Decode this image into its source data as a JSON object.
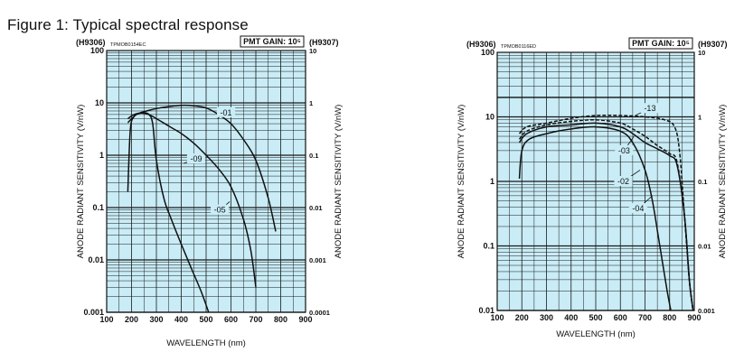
{
  "figure_title": "Figure 1: Typical spectral response",
  "chart_data": [
    {
      "type": "line",
      "left_header": "(H9306)",
      "right_header": "(H9307)",
      "code": "TPMOB0154EC",
      "gain_label": "PMT GAIN: 10⁵",
      "xlabel": "WAVELENGTH (nm)",
      "ylabel_left": "ANODE RADIANT SENSITIVITY (V/nW)",
      "ylabel_right": "ANODE RADIANT SENSITIVITY (V/nW)",
      "xlim": [
        100,
        900
      ],
      "ylim_left": [
        0.001,
        100
      ],
      "ylim_right": [
        0.0001,
        10
      ],
      "scale_y": "log",
      "grid": true,
      "x_ticks": [
        "100",
        "200",
        "300",
        "400",
        "500",
        "600",
        "700",
        "800",
        "900"
      ],
      "y_ticks_left": [
        "100",
        "10",
        "1",
        "0.1",
        "0.01",
        "0.001"
      ],
      "y_ticks_right": [
        "10",
        "1",
        "0.1",
        "0.01",
        "0.001",
        "0.0001"
      ],
      "series": [
        {
          "name": "-01",
          "label_at": [
            580,
            6.5
          ],
          "leader_to": [
            545,
            5.0
          ],
          "points": [
            [
              185,
              4.2
            ],
            [
              220,
              6.0
            ],
            [
              260,
              7.0
            ],
            [
              300,
              7.8
            ],
            [
              350,
              8.5
            ],
            [
              400,
              9.0
            ],
            [
              450,
              8.8
            ],
            [
              500,
              8.0
            ],
            [
              550,
              6.0
            ],
            [
              600,
              4.0
            ],
            [
              650,
              2.0
            ],
            [
              700,
              0.8
            ],
            [
              750,
              0.15
            ],
            [
              780,
              0.035
            ]
          ]
        },
        {
          "name": "-09",
          "label_at": [
            460,
            0.85
          ],
          "leader_to": [
            410,
            0.7
          ],
          "points": [
            [
              185,
              0.2
            ],
            [
              195,
              3.0
            ],
            [
              210,
              5.5
            ],
            [
              230,
              6.3
            ],
            [
              250,
              6.5
            ],
            [
              270,
              6.0
            ],
            [
              285,
              4.0
            ],
            [
              300,
              0.8
            ],
            [
              330,
              0.15
            ],
            [
              360,
              0.06
            ],
            [
              400,
              0.02
            ],
            [
              440,
              0.007
            ],
            [
              480,
              0.0025
            ],
            [
              510,
              0.001
            ]
          ]
        },
        {
          "name": "-05",
          "label_at": [
            555,
            0.09
          ],
          "leader_to": [
            595,
            0.13
          ],
          "points": [
            [
              185,
              5.0
            ],
            [
              210,
              6.0
            ],
            [
              240,
              6.4
            ],
            [
              270,
              6.0
            ],
            [
              300,
              5.0
            ],
            [
              350,
              3.6
            ],
            [
              400,
              2.6
            ],
            [
              450,
              1.7
            ],
            [
              500,
              1.0
            ],
            [
              550,
              0.55
            ],
            [
              600,
              0.25
            ],
            [
              650,
              0.06
            ],
            [
              680,
              0.015
            ],
            [
              700,
              0.003
            ]
          ]
        }
      ]
    },
    {
      "type": "line",
      "left_header": "(H9306)",
      "right_header": "(H9307)",
      "code": "TPMOB0116ED",
      "gain_label": "PMT GAIN: 10⁵",
      "xlabel": "WAVELENGTH (nm)",
      "ylabel_left": "ANODE RADIANT SENSITIVITY (V/nW)",
      "ylabel_right": "ANODE RADIANT SENSITIVITY (V/nW)",
      "xlim": [
        100,
        900
      ],
      "ylim_left": [
        0.01,
        100
      ],
      "ylim_right": [
        0.001,
        10
      ],
      "scale_y": "log",
      "grid": true,
      "x_ticks": [
        "100",
        "200",
        "300",
        "400",
        "500",
        "600",
        "700",
        "800",
        "900"
      ],
      "y_ticks_left": [
        "100",
        "10",
        "1",
        "0.1",
        "0.01"
      ],
      "y_ticks_right": [
        "10",
        "1",
        "0.1",
        "0.01",
        "0.001"
      ],
      "series": [
        {
          "name": "-13",
          "dash": true,
          "label_at": [
            720,
            13.5
          ],
          "leader_to": [
            660,
            10.5
          ],
          "points": [
            [
              190,
              5.5
            ],
            [
              220,
              7.0
            ],
            [
              300,
              8.0
            ],
            [
              400,
              9.5
            ],
            [
              500,
              10.5
            ],
            [
              600,
              10.5
            ],
            [
              700,
              10.0
            ],
            [
              780,
              9.0
            ],
            [
              820,
              7.0
            ],
            [
              840,
              3.0
            ],
            [
              860,
              0.3
            ],
            [
              880,
              0.03
            ],
            [
              895,
              0.01
            ]
          ]
        },
        {
          "name": "-03",
          "dash": true,
          "label_at": [
            615,
            3.0
          ],
          "leader_to": [
            655,
            5.0
          ],
          "points": [
            [
              190,
              4.5
            ],
            [
              220,
              6.0
            ],
            [
              300,
              7.5
            ],
            [
              400,
              8.5
            ],
            [
              500,
              9.0
            ],
            [
              600,
              8.0
            ],
            [
              650,
              6.5
            ],
            [
              700,
              5.0
            ],
            [
              750,
              3.6
            ],
            [
              800,
              2.7
            ],
            [
              830,
              2.0
            ],
            [
              860,
              0.3
            ],
            [
              880,
              0.03
            ],
            [
              895,
              0.01
            ]
          ]
        },
        {
          "name": "-02",
          "label_at": [
            612,
            1.0
          ],
          "leader_to": [
            680,
            1.5
          ],
          "points": [
            [
              190,
              4.0
            ],
            [
              220,
              5.5
            ],
            [
              300,
              7.0
            ],
            [
              400,
              7.5
            ],
            [
              500,
              8.0
            ],
            [
              600,
              7.0
            ],
            [
              650,
              5.5
            ],
            [
              700,
              4.0
            ],
            [
              750,
              3.2
            ],
            [
              800,
              2.5
            ],
            [
              830,
              1.8
            ],
            [
              860,
              0.3
            ],
            [
              880,
              0.03
            ],
            [
              895,
              0.01
            ]
          ]
        },
        {
          "name": "-04",
          "label_at": [
            672,
            0.38
          ],
          "leader_to": [
            730,
            0.6
          ],
          "points": [
            [
              190,
              1.1
            ],
            [
              200,
              3.0
            ],
            [
              230,
              4.5
            ],
            [
              300,
              5.5
            ],
            [
              400,
              6.5
            ],
            [
              500,
              7.0
            ],
            [
              600,
              6.0
            ],
            [
              650,
              4.0
            ],
            [
              700,
              1.5
            ],
            [
              730,
              0.5
            ],
            [
              760,
              0.1
            ],
            [
              790,
              0.02
            ],
            [
              805,
              0.01
            ]
          ]
        }
      ]
    }
  ]
}
